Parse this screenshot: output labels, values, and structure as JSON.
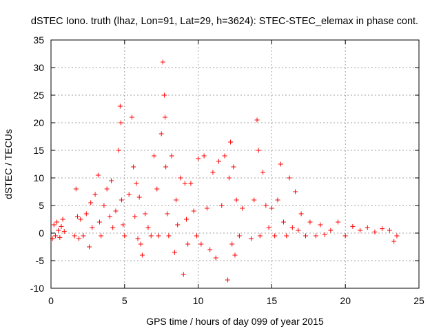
{
  "chart_data": {
    "type": "scatter",
    "title": "dSTEC Iono. truth (lhaz, Lon=91, Lat=29, h=3624): STEC-STEC_elemax in phase cont.",
    "xlabel": "GPS time / hours of day 099 of year 2015",
    "ylabel": "dSTEC  / TECUs",
    "xlim": [
      0,
      25
    ],
    "ylim": [
      -10,
      35
    ],
    "xticks": [
      0,
      5,
      10,
      15,
      20,
      25
    ],
    "yticks": [
      -10,
      -5,
      0,
      5,
      10,
      15,
      20,
      25,
      30,
      35
    ],
    "grid": true,
    "marker": "+",
    "marker_color": "#ff0000",
    "series": [
      {
        "x": [
          0.1,
          0.2,
          0.3,
          0.4,
          0.5,
          0.6,
          0.7,
          0.8,
          0.9,
          1.6,
          1.7,
          1.8,
          1.9,
          2.0,
          2.2,
          2.4,
          2.6,
          2.7,
          2.8,
          3.0,
          3.2,
          3.3,
          3.4,
          3.6,
          3.8,
          4.0,
          4.1,
          4.2,
          4.4,
          4.6,
          4.7,
          4.75,
          4.8,
          4.9,
          5.0,
          5.3,
          5.5,
          5.6,
          5.7,
          5.8,
          5.9,
          6.0,
          6.1,
          6.2,
          6.4,
          6.6,
          6.8,
          7.0,
          7.2,
          7.3,
          7.5,
          7.6,
          7.7,
          7.75,
          7.8,
          7.9,
          8.0,
          8.2,
          8.4,
          8.5,
          8.6,
          8.8,
          9.0,
          9.1,
          9.2,
          9.3,
          9.5,
          9.7,
          9.9,
          10.0,
          10.2,
          10.4,
          10.6,
          10.8,
          11.0,
          11.2,
          11.4,
          11.6,
          11.8,
          12.0,
          12.1,
          12.2,
          12.3,
          12.4,
          12.5,
          12.6,
          12.8,
          13.0,
          13.6,
          13.8,
          14.0,
          14.1,
          14.2,
          14.4,
          14.6,
          14.8,
          15.0,
          15.2,
          15.4,
          15.6,
          15.8,
          16.0,
          16.2,
          16.4,
          16.6,
          16.8,
          17.0,
          17.3,
          17.6,
          18.0,
          18.3,
          18.6,
          19.0,
          19.5,
          20.0,
          20.5,
          21.0,
          21.5,
          22.0,
          22.5,
          23.0,
          23.3,
          23.5
        ],
        "y": [
          -1.0,
          1.5,
          -0.5,
          2.0,
          0.5,
          -0.8,
          1.2,
          2.5,
          0.3,
          -0.5,
          8.0,
          3.0,
          -1.0,
          2.5,
          -0.5,
          3.5,
          -2.5,
          5.5,
          1.0,
          7.0,
          10.5,
          2.0,
          -0.5,
          5.0,
          8.0,
          3.0,
          9.5,
          1.0,
          4.0,
          15.0,
          23.0,
          20.0,
          6.0,
          1.5,
          -0.5,
          7.0,
          21.0,
          12.0,
          3.0,
          9.0,
          -1.0,
          6.5,
          -2.0,
          -4.0,
          3.5,
          1.0,
          -0.5,
          14.0,
          8.0,
          -0.5,
          18.0,
          31.0,
          25.0,
          21.0,
          12.0,
          3.5,
          -0.5,
          14.0,
          -3.5,
          6.0,
          1.5,
          10.0,
          -7.5,
          9.0,
          2.5,
          -2.0,
          9.0,
          4.0,
          -0.5,
          13.5,
          -2.0,
          14.0,
          4.5,
          -3.0,
          11.0,
          -4.5,
          13.0,
          5.0,
          14.0,
          -8.5,
          10.0,
          16.5,
          -2.0,
          12.0,
          -4.0,
          6.0,
          -0.5,
          4.5,
          -1.0,
          6.0,
          20.5,
          15.0,
          -0.5,
          11.0,
          5.0,
          1.0,
          4.5,
          -0.5,
          6.0,
          12.5,
          2.0,
          -0.5,
          10.0,
          1.0,
          7.5,
          0.5,
          3.5,
          -0.5,
          2.0,
          -0.5,
          1.5,
          -0.3,
          0.5,
          2.0,
          -0.5,
          1.2,
          0.5,
          1.0,
          0.2,
          0.8,
          0.5,
          -1.5,
          -0.5
        ]
      }
    ]
  }
}
